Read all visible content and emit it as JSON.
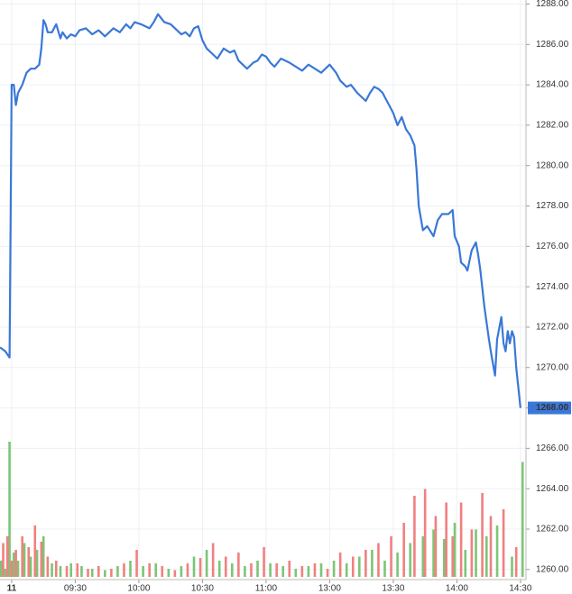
{
  "chart_data": {
    "type": "line",
    "x": [
      -5.5,
      -3,
      -1,
      0,
      1,
      2,
      3,
      4,
      5,
      7,
      9,
      11,
      13,
      14,
      15,
      16,
      17,
      19,
      21,
      23,
      24,
      26,
      28,
      30,
      32,
      35,
      38,
      41,
      44,
      48,
      51,
      54,
      56,
      58,
      61,
      65,
      67,
      69,
      72,
      75,
      78,
      80,
      82,
      84,
      86,
      88,
      90,
      92,
      95,
      97,
      100,
      103,
      105,
      107,
      109,
      111,
      114,
      116,
      118,
      120,
      122,
      124,
      127,
      131,
      134,
      137,
      140,
      143,
      146,
      150,
      153,
      155,
      158,
      160,
      163,
      165,
      167,
      169,
      171,
      173,
      175,
      177,
      178,
      180,
      182,
      184,
      186,
      188,
      190,
      191,
      192,
      194,
      196,
      199,
      201,
      203,
      206,
      208,
      209,
      211,
      212,
      214,
      215,
      217,
      219,
      220,
      221,
      223,
      225,
      226,
      228,
      229,
      231,
      232,
      233,
      234,
      235,
      236,
      237,
      238,
      240
    ],
    "series": [
      {
        "color": "#3a78d8",
        "values": [
          1271.0,
          1270.8,
          1270.5,
          1284.0,
          1284.0,
          1283.0,
          1283.6,
          1283.8,
          1284.0,
          1284.6,
          1284.8,
          1284.8,
          1285.0,
          1285.8,
          1287.2,
          1287.0,
          1286.6,
          1286.6,
          1287.0,
          1286.3,
          1286.6,
          1286.3,
          1286.5,
          1286.4,
          1286.7,
          1286.8,
          1286.5,
          1286.7,
          1286.4,
          1286.8,
          1286.6,
          1287.0,
          1286.8,
          1287.1,
          1287.0,
          1286.8,
          1287.1,
          1287.5,
          1287.1,
          1287.0,
          1286.7,
          1286.5,
          1286.6,
          1286.4,
          1286.8,
          1286.9,
          1286.2,
          1285.8,
          1285.5,
          1285.3,
          1285.8,
          1285.6,
          1285.7,
          1285.2,
          1285.0,
          1284.8,
          1285.1,
          1285.2,
          1285.5,
          1285.4,
          1285.1,
          1284.9,
          1285.3,
          1285.1,
          1284.9,
          1284.7,
          1285.0,
          1284.8,
          1284.6,
          1285.0,
          1284.6,
          1284.2,
          1283.9,
          1284.0,
          1283.6,
          1283.4,
          1283.2,
          1283.6,
          1283.9,
          1283.8,
          1283.6,
          1283.2,
          1283.0,
          1282.6,
          1282.0,
          1282.4,
          1281.8,
          1281.5,
          1281.0,
          1279.8,
          1278.0,
          1276.8,
          1277.0,
          1276.5,
          1277.3,
          1277.6,
          1277.6,
          1277.8,
          1276.5,
          1276.0,
          1275.2,
          1275.0,
          1274.8,
          1275.8,
          1276.2,
          1275.6,
          1274.9,
          1273.0,
          1271.5,
          1270.8,
          1269.6,
          1271.4,
          1272.5,
          1271.2,
          1270.8,
          1271.8,
          1271.2,
          1271.8,
          1271.5,
          1270.0,
          1268.0
        ]
      }
    ],
    "volume_up": {
      "color": "#7cc576",
      "x": [
        -5,
        -3,
        -1,
        1,
        3,
        6,
        9,
        12,
        15,
        19,
        23,
        28,
        33,
        38,
        44,
        50,
        56,
        62,
        68,
        74,
        80,
        86,
        92,
        98,
        104,
        110,
        116,
        122,
        128,
        134,
        140,
        146,
        152,
        158,
        164,
        170,
        176,
        182,
        188,
        194,
        199,
        204,
        209,
        214,
        219,
        224,
        229,
        236,
        241
      ],
      "values": [
        12,
        6,
        100,
        18,
        12,
        25,
        15,
        20,
        30,
        10,
        8,
        10,
        8,
        6,
        5,
        8,
        12,
        8,
        10,
        6,
        8,
        15,
        20,
        12,
        10,
        8,
        12,
        10,
        8,
        6,
        8,
        10,
        12,
        10,
        15,
        20,
        12,
        18,
        25,
        30,
        35,
        28,
        40,
        20,
        35,
        30,
        38,
        15,
        85
      ]
    },
    "volume_down": {
      "color": "#f08080",
      "x": [
        -4,
        -2,
        0,
        2,
        5,
        8,
        11,
        14,
        17,
        21,
        26,
        31,
        36,
        41,
        47,
        53,
        59,
        65,
        71,
        77,
        83,
        89,
        95,
        101,
        107,
        113,
        119,
        125,
        131,
        137,
        143,
        149,
        155,
        161,
        167,
        173,
        179,
        185,
        190,
        195,
        200,
        205,
        208,
        212,
        217,
        222,
        226,
        232,
        238
      ],
      "values": [
        25,
        30,
        12,
        20,
        30,
        22,
        38,
        26,
        15,
        12,
        8,
        10,
        6,
        8,
        6,
        10,
        20,
        10,
        8,
        5,
        10,
        14,
        25,
        15,
        18,
        10,
        22,
        10,
        12,
        8,
        10,
        6,
        18,
        15,
        20,
        25,
        30,
        40,
        60,
        65,
        45,
        55,
        30,
        55,
        35,
        62,
        45,
        50,
        22
      ]
    },
    "volume_lim": [
      0,
      100
    ],
    "xlim": [
      -5.5,
      242.6
    ],
    "xticks": [
      {
        "value": 0,
        "label": "11"
      },
      {
        "value": 30,
        "label": "09:30"
      },
      {
        "value": 60,
        "label": "10:00"
      },
      {
        "value": 90,
        "label": "10:30"
      },
      {
        "value": 120,
        "label": "11:00"
      },
      {
        "value": 150,
        "label": "13:00"
      },
      {
        "value": 180,
        "label": "13:30"
      },
      {
        "value": 210,
        "label": "14:00"
      },
      {
        "value": 240,
        "label": "14:30"
      }
    ],
    "ylim": [
      1259.5,
      1288.2
    ],
    "yticks": [
      {
        "value": 1260,
        "label": "1260.00"
      },
      {
        "value": 1262,
        "label": "1262.00"
      },
      {
        "value": 1264,
        "label": "1264.00"
      },
      {
        "value": 1266,
        "label": "1266.00"
      },
      {
        "value": 1268,
        "label": "1268.00"
      },
      {
        "value": 1270,
        "label": "1270.00"
      },
      {
        "value": 1272,
        "label": "1272.00"
      },
      {
        "value": 1274,
        "label": "1274.00"
      },
      {
        "value": 1276,
        "label": "1276.00"
      },
      {
        "value": 1278,
        "label": "1278.00"
      },
      {
        "value": 1280,
        "label": "1280.00"
      },
      {
        "value": 1282,
        "label": "1282.00"
      },
      {
        "value": 1284,
        "label": "1284.00"
      },
      {
        "value": 1286,
        "label": "1286.00"
      },
      {
        "value": 1288,
        "label": "1288.00"
      }
    ],
    "last_price": {
      "value": 1268,
      "label": "1268.00",
      "color": "#3a78d8"
    },
    "grid": true
  }
}
